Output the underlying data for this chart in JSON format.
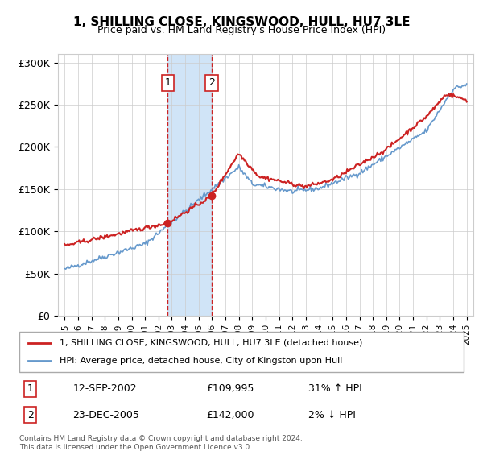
{
  "title": "1, SHILLING CLOSE, KINGSWOOD, HULL, HU7 3LE",
  "subtitle": "Price paid vs. HM Land Registry's House Price Index (HPI)",
  "xlabel": "",
  "ylabel": "",
  "ylim": [
    0,
    310000
  ],
  "yticks": [
    0,
    50000,
    100000,
    150000,
    200000,
    250000,
    300000
  ],
  "ytick_labels": [
    "£0",
    "£50K",
    "£100K",
    "£150K",
    "£200K",
    "£250K",
    "£300K"
  ],
  "sale1_date": 2002.7,
  "sale1_price": 109995,
  "sale1_label": "1",
  "sale1_display": "12-SEP-2002",
  "sale1_price_display": "£109,995",
  "sale1_hpi": "31% ↑ HPI",
  "sale2_date": 2005.97,
  "sale2_price": 142000,
  "sale2_label": "2",
  "sale2_display": "23-DEC-2005",
  "sale2_price_display": "£142,000",
  "sale2_hpi": "2% ↓ HPI",
  "hpi_color": "#6699cc",
  "sale_color": "#cc2222",
  "shade_color": "#d0e4f7",
  "footer": "Contains HM Land Registry data © Crown copyright and database right 2024.\nThis data is licensed under the Open Government Licence v3.0.",
  "legend_label1": "1, SHILLING CLOSE, KINGSWOOD, HULL, HU7 3LE (detached house)",
  "legend_label2": "HPI: Average price, detached house, City of Kingston upon Hull"
}
